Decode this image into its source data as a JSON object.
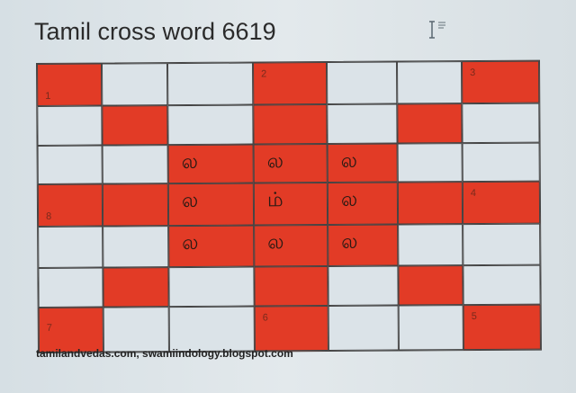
{
  "title": "Tamil cross word 6619",
  "footer": "tamilandvedas.com, swamiindology.blogspot.com",
  "colors": {
    "filled": "#e23b26",
    "empty": "#dbe3e8"
  },
  "cursor_icon": "text-cursor-icon",
  "grid": {
    "rows": [
      [
        {
          "c": "r",
          "n": "1",
          "pos": "bottom"
        },
        {
          "c": "w"
        },
        {
          "c": "w"
        },
        {
          "c": "r",
          "n": "2",
          "pos": "top"
        },
        {
          "c": "w"
        },
        {
          "c": "w"
        },
        {
          "c": "r",
          "n": "3",
          "pos": "top"
        }
      ],
      [
        {
          "c": "w"
        },
        {
          "c": "r"
        },
        {
          "c": "w"
        },
        {
          "c": "r"
        },
        {
          "c": "w"
        },
        {
          "c": "r"
        },
        {
          "c": "w"
        }
      ],
      [
        {
          "c": "w"
        },
        {
          "c": "w"
        },
        {
          "c": "r",
          "t": "ல"
        },
        {
          "c": "r",
          "t": "ல"
        },
        {
          "c": "r",
          "t": "ல"
        },
        {
          "c": "w"
        },
        {
          "c": "w"
        }
      ],
      [
        {
          "c": "r",
          "n": "8",
          "pos": "bottom"
        },
        {
          "c": "r"
        },
        {
          "c": "r",
          "t": "ல"
        },
        {
          "c": "r",
          "t": "ம்"
        },
        {
          "c": "r",
          "t": "ல"
        },
        {
          "c": "r"
        },
        {
          "c": "r",
          "n": "4",
          "pos": "top"
        }
      ],
      [
        {
          "c": "w"
        },
        {
          "c": "w"
        },
        {
          "c": "r",
          "t": "ல"
        },
        {
          "c": "r",
          "t": "ல"
        },
        {
          "c": "r",
          "t": "ல"
        },
        {
          "c": "w"
        },
        {
          "c": "w"
        }
      ],
      [
        {
          "c": "w"
        },
        {
          "c": "r"
        },
        {
          "c": "w"
        },
        {
          "c": "r"
        },
        {
          "c": "w"
        },
        {
          "c": "r"
        },
        {
          "c": "w"
        }
      ],
      [
        {
          "c": "r",
          "n": "7",
          "pos": "middle"
        },
        {
          "c": "w"
        },
        {
          "c": "w"
        },
        {
          "c": "r",
          "n": "6",
          "pos": "top"
        },
        {
          "c": "w"
        },
        {
          "c": "w"
        },
        {
          "c": "r",
          "n": "5",
          "pos": "top"
        }
      ]
    ]
  }
}
